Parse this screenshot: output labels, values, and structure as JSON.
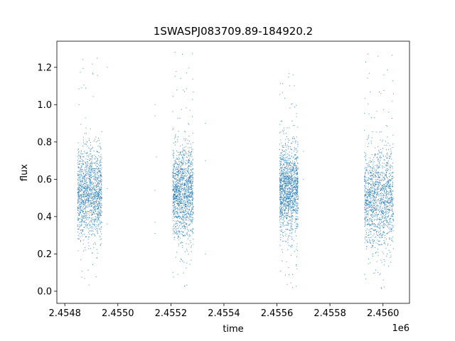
{
  "chart_data": {
    "type": "scatter",
    "title": "1SWASPJ083709.89-184920.2",
    "xlabel": "time",
    "ylabel": "flux",
    "x_offset_label": "1e6",
    "xlim": [
      2454770,
      2456100
    ],
    "ylim": [
      -0.065,
      1.34
    ],
    "x_ticks": [
      2454800,
      2455000,
      2455200,
      2455400,
      2455600,
      2455800,
      2456000
    ],
    "x_tick_labels": [
      "2.4548",
      "2.4550",
      "2.4552",
      "2.4554",
      "2.4556",
      "2.4558",
      "2.4560"
    ],
    "y_ticks": [
      0.0,
      0.2,
      0.4,
      0.6,
      0.8,
      1.0,
      1.2
    ],
    "y_tick_labels": [
      "0.0",
      "0.2",
      "0.4",
      "0.6",
      "0.8",
      "1.0",
      "1.2"
    ],
    "grid": false,
    "marker_color": "#1f77b4",
    "clusters": [
      {
        "x_start": 2454848,
        "x_end": 2454940,
        "flux_center": 0.52,
        "flux_spread": 0.12,
        "flux_min": 0.03,
        "flux_max": 1.28
      },
      {
        "x_start": 2455207,
        "x_end": 2455285,
        "flux_center": 0.53,
        "flux_spread": 0.12,
        "flux_min": 0.01,
        "flux_max": 1.31
      },
      {
        "x_start": 2455610,
        "x_end": 2455680,
        "flux_center": 0.55,
        "flux_spread": 0.12,
        "flux_min": 0.0,
        "flux_max": 1.18
      },
      {
        "x_start": 2455930,
        "x_end": 2456040,
        "flux_center": 0.5,
        "flux_spread": 0.13,
        "flux_min": 0.0,
        "flux_max": 1.3
      }
    ],
    "isolated_points": [
      {
        "x": 2455140,
        "y": 1.0
      },
      {
        "x": 2455140,
        "y": 0.94
      },
      {
        "x": 2455145,
        "y": 0.72
      },
      {
        "x": 2455140,
        "y": 0.54
      },
      {
        "x": 2455140,
        "y": 0.37
      },
      {
        "x": 2455140,
        "y": 0.31
      },
      {
        "x": 2454960,
        "y": 1.2
      },
      {
        "x": 2454960,
        "y": 0.55
      },
      {
        "x": 2454960,
        "y": 0.36
      },
      {
        "x": 2455330,
        "y": 0.9
      },
      {
        "x": 2455330,
        "y": 0.7
      },
      {
        "x": 2455330,
        "y": 0.2
      },
      {
        "x": 2455700,
        "y": 0.75
      },
      {
        "x": 2455700,
        "y": 0.6
      }
    ]
  }
}
